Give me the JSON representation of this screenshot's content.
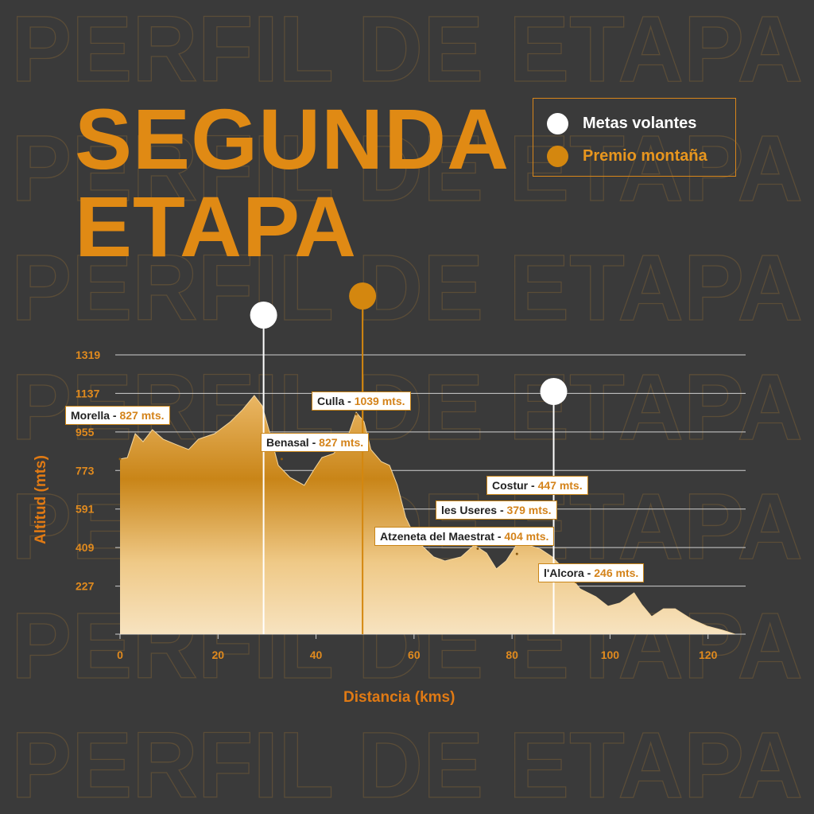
{
  "chart_data": {
    "type": "area",
    "title": "SEGUNDA ETAPA",
    "watermark": "PERFIL DE ETAPA",
    "x_label": "Distancia (kms)",
    "y_label": "Altitud (mts)",
    "x": [
      0,
      1.5,
      3.1,
      4.7,
      6.6,
      8.8,
      11.2,
      14,
      16,
      19.3,
      22.5,
      25,
      27.4,
      29,
      30.6,
      32.3,
      34.7,
      37.6,
      39.6,
      41.2,
      43.6,
      46.4,
      48.2,
      49.8,
      51.2,
      53.3,
      55,
      56.6,
      58.3,
      60.6,
      64,
      66.3,
      69.6,
      72.3,
      74.8,
      76.8,
      78.8,
      80.9,
      83.3,
      85.8,
      88.2,
      90.6,
      93.9,
      97.1,
      99.6,
      102,
      104.9,
      106.5,
      108.5,
      110.9,
      113.3,
      116.6,
      119.8,
      123,
      125.5
    ],
    "values": [
      827,
      834,
      947,
      909,
      966,
      921,
      898,
      872,
      921,
      947,
      1003,
      1060,
      1127,
      1079,
      947,
      797,
      740,
      703,
      778,
      834,
      853,
      928,
      1048,
      1003,
      872,
      815,
      797,
      703,
      552,
      440,
      365,
      346,
      365,
      421,
      383,
      308,
      346,
      421,
      421,
      402,
      365,
      308,
      214,
      177,
      132,
      147,
      195,
      139,
      83,
      120,
      120,
      71,
      38,
      19,
      0
    ],
    "xlim": [
      0,
      128
    ],
    "ylim": [
      0,
      1319
    ],
    "xticks": [
      0,
      20,
      40,
      60,
      80,
      100,
      120
    ],
    "yticks": [
      227,
      409,
      591,
      773,
      955,
      1137,
      1319
    ],
    "grid": true,
    "marker_groups": [
      {
        "name": "Metas volantes",
        "color": "#ffffff",
        "x": [
          29.3,
          88.5
        ]
      },
      {
        "name": "Premio montaña",
        "color": "#d4870f",
        "x": [
          49.5
        ]
      }
    ],
    "separator": " - ",
    "annotations": [
      {
        "name": "Morella",
        "x": 0,
        "value": 827,
        "value_label": "827 mts."
      },
      {
        "name": "Culla",
        "x": 48.2,
        "value": 1039,
        "value_label": "1039 mts."
      },
      {
        "name": "Benasal",
        "x": 33,
        "value": 827,
        "value_label": "827 mts."
      },
      {
        "name": "Costur",
        "x": 85.5,
        "value": 447,
        "value_label": "447 mts."
      },
      {
        "name": "les Useres",
        "x": 81,
        "value": 379,
        "value_label": "379 mts."
      },
      {
        "name": "Atzeneta del Maestrat",
        "x": 73,
        "value": 404,
        "value_label": "404 mts."
      },
      {
        "name": "l'Alcora",
        "x": 93,
        "value": 246,
        "value_label": "246 mts."
      }
    ]
  }
}
